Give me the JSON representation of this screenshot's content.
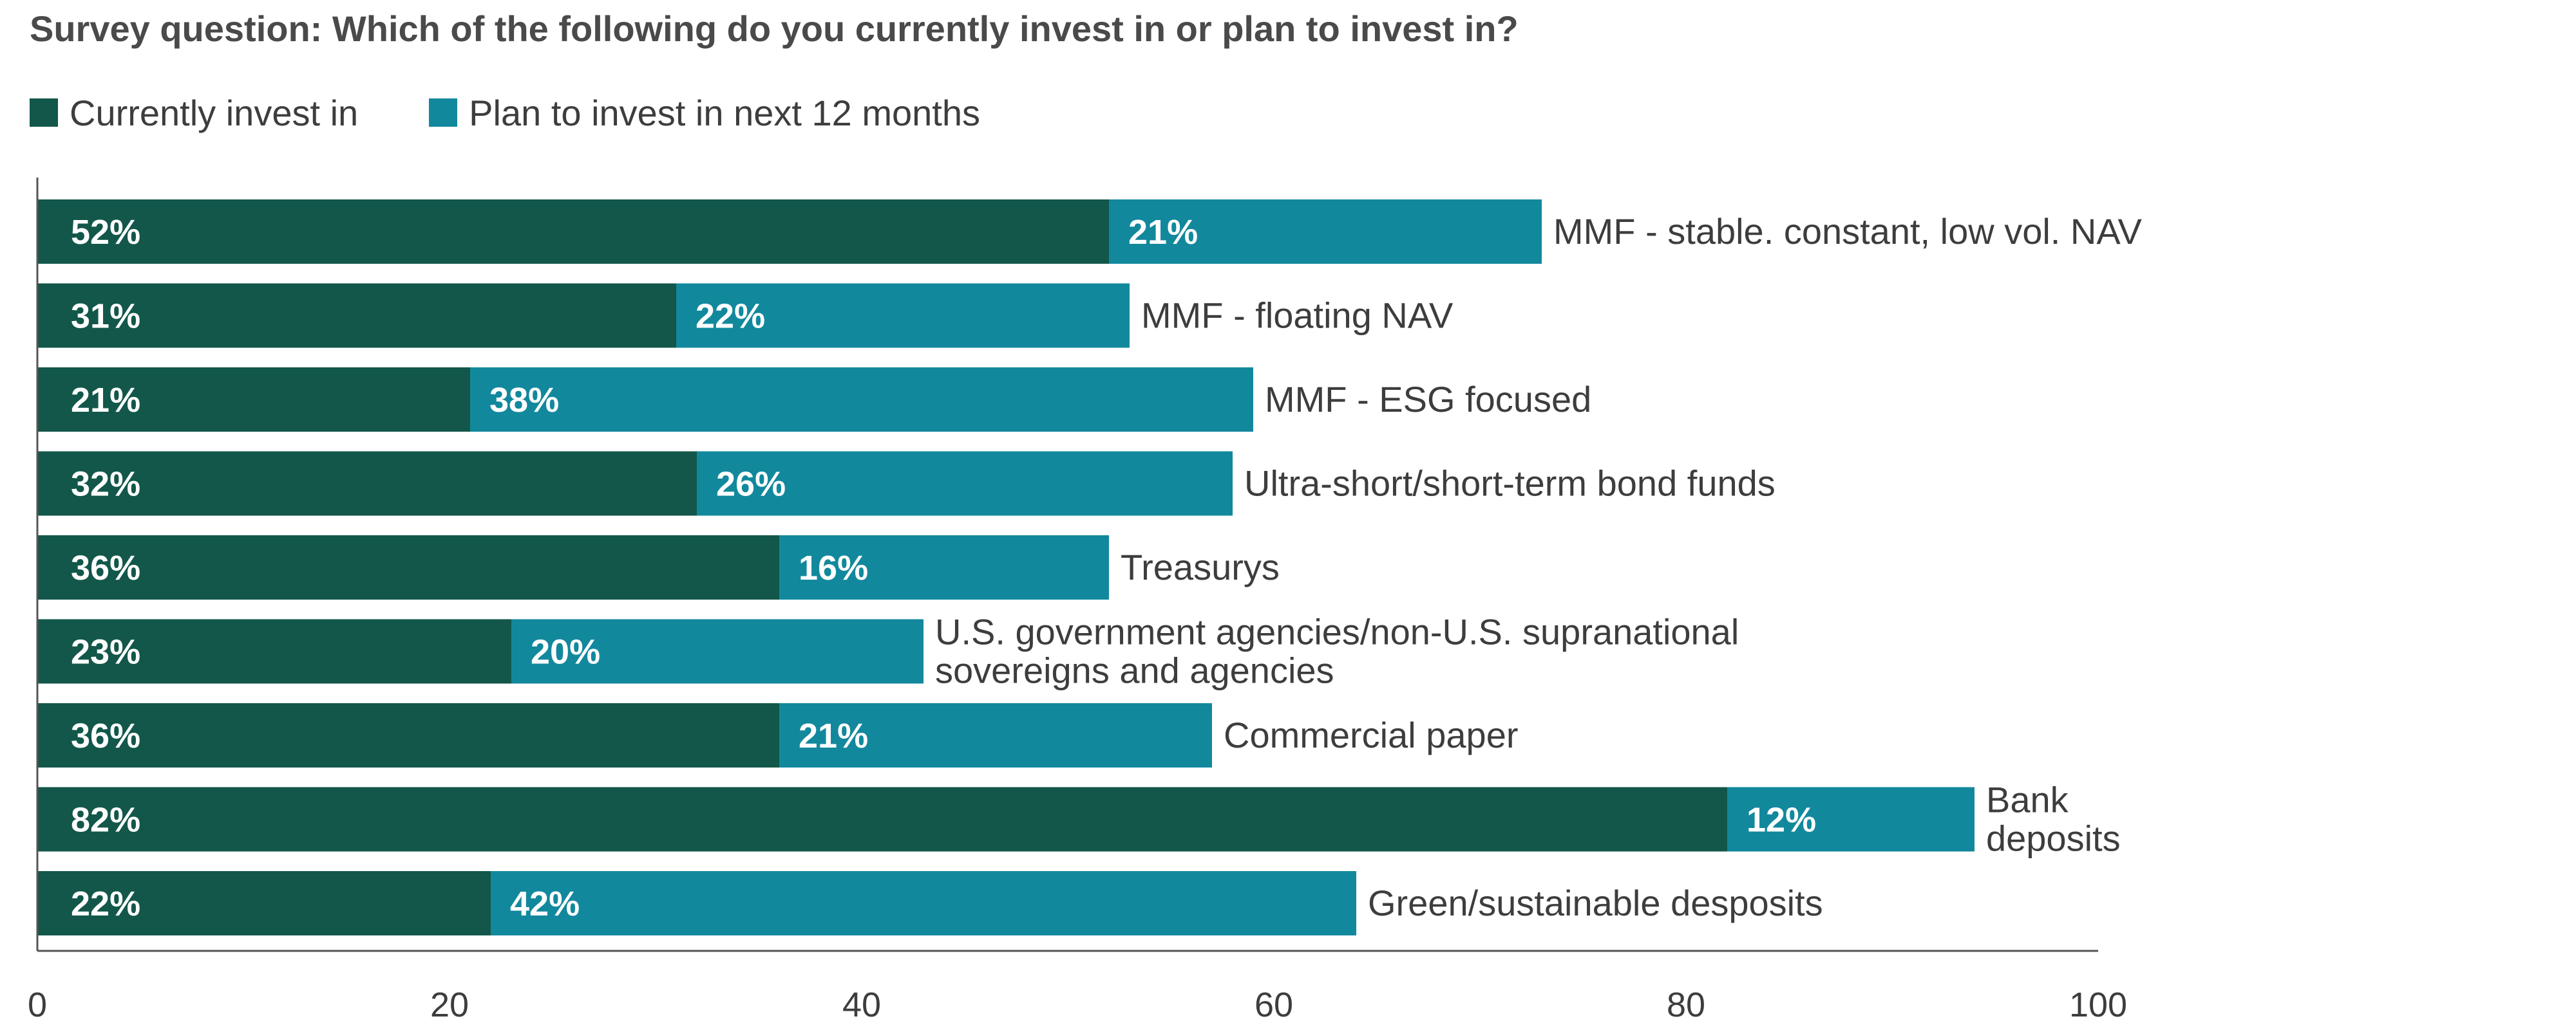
{
  "question": "Survey question:  Which of the following do you currently invest in or plan to invest in?",
  "legend": [
    {
      "label": "Currently invest in",
      "color": "#12574a"
    },
    {
      "label": "Plan to invest in next 12 months",
      "color": "#12889d"
    }
  ],
  "chart_data": {
    "type": "bar",
    "orientation": "horizontal",
    "stacked": true,
    "title": "",
    "xlabel": "",
    "ylabel": "",
    "xlim": [
      0,
      100
    ],
    "xticks": [
      "0",
      "20",
      "40",
      "60",
      "80",
      "100"
    ],
    "grid": false,
    "legend_position": "top-left",
    "categories": [
      [
        "MMF - stable. constant, low vol. NAV"
      ],
      [
        "MMF - floating NAV"
      ],
      [
        "MMF - ESG focused"
      ],
      [
        "Ultra-short/short-term bond funds"
      ],
      [
        "Treasurys"
      ],
      [
        "U.S. government agencies/non-U.S. supranational",
        "sovereigns and agencies"
      ],
      [
        "Commercial paper"
      ],
      [
        "Bank",
        "deposits"
      ],
      [
        "Green/sustainable desposits"
      ]
    ],
    "series": [
      {
        "name": "Currently invest in",
        "color": "#12574a",
        "values": [
          52,
          31,
          21,
          32,
          36,
          23,
          36,
          82,
          22
        ],
        "labels": [
          "52%",
          "31%",
          "21%",
          "32%",
          "36%",
          "23%",
          "36%",
          "82%",
          "22%"
        ]
      },
      {
        "name": "Plan to invest in next 12 months",
        "color": "#12889d",
        "values": [
          21,
          22,
          38,
          26,
          16,
          20,
          21,
          12,
          42
        ],
        "labels": [
          "21%",
          "22%",
          "38%",
          "26%",
          "16%",
          "20%",
          "21%",
          "12%",
          "42%"
        ]
      }
    ]
  }
}
